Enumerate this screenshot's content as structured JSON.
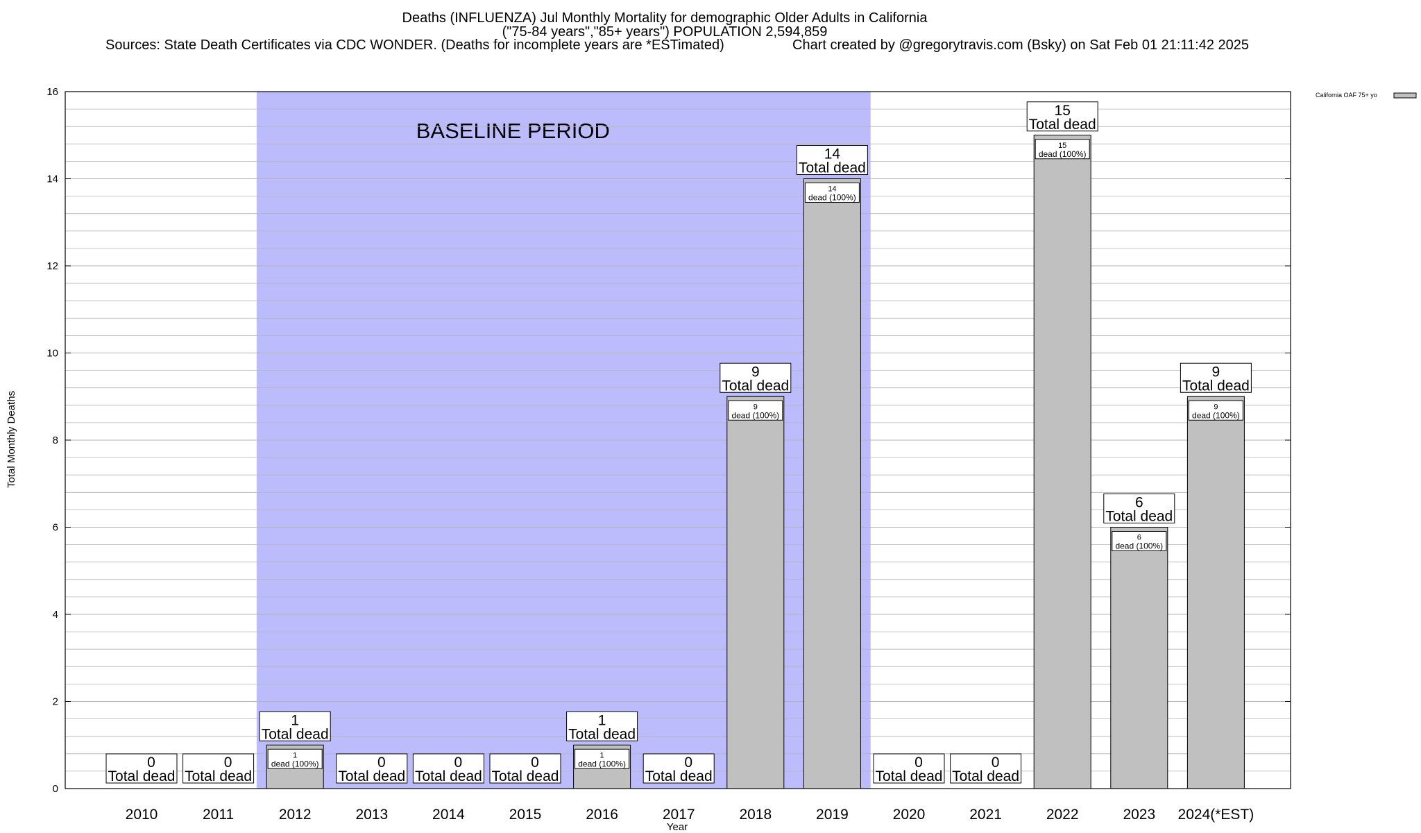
{
  "chart_data": {
    "type": "bar",
    "title_lines": [
      "Deaths (INFLUENZA) Jul Monthly Mortality for demographic Older Adults in California",
      "(\"75-84 years\",\"85+ years\") POPULATION 2,594,859"
    ],
    "sources": "Sources: State Death Certificates via CDC WONDER. (Deaths for incomplete years are *ESTimated)",
    "credit": "Chart created by @gregorytravis.com (Bsky) on Sat Feb 01 21:11:42 2025",
    "xlabel": "Year",
    "ylabel": "Total Monthly Deaths",
    "ylim": [
      0,
      16
    ],
    "y_ticks": [
      0,
      2,
      4,
      6,
      8,
      10,
      12,
      14,
      16
    ],
    "grid": true,
    "categories": [
      "2010",
      "2011",
      "2012",
      "2013",
      "2014",
      "2015",
      "2016",
      "2017",
      "2018",
      "2019",
      "2020",
      "2021",
      "2022",
      "2023",
      "2024(*EST)"
    ],
    "series": [
      {
        "name": "California OAF 75+ yo",
        "values": [
          0,
          0,
          1,
          0,
          0,
          0,
          1,
          0,
          9,
          14,
          0,
          0,
          15,
          6,
          9
        ]
      }
    ],
    "total_label_suffix": "Total dead",
    "inner_label_suffix": "dead (100%)",
    "baseline_period": {
      "label": "BASELINE PERIOD",
      "from": "2012",
      "to": "2019"
    },
    "legend_position": "top-right",
    "colors": {
      "bar": "#c0c0c0",
      "baseline_shade": "#bcbcfc",
      "grid": "#b4b4b4"
    }
  }
}
